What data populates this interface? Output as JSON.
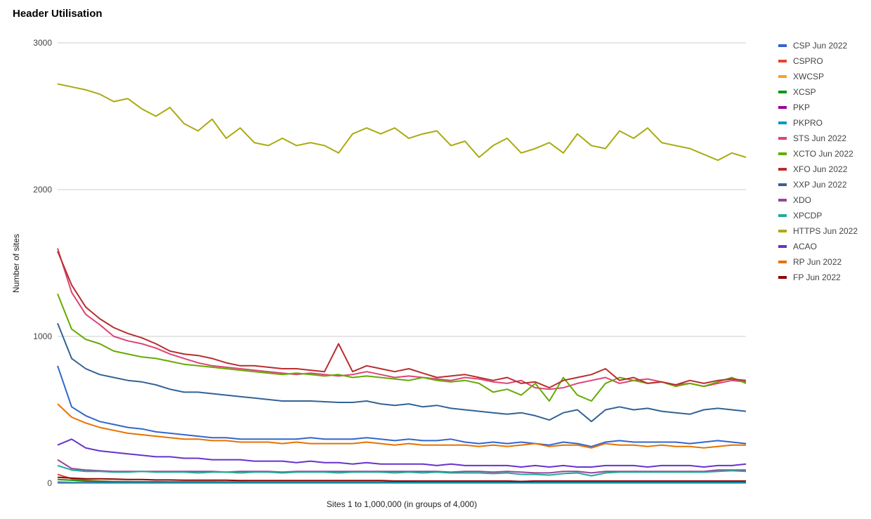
{
  "chart_data": {
    "type": "line",
    "title": "Header Utilisation",
    "xlabel": "Sites 1 to 1,000,000 (in groups of 4,000)",
    "ylabel": "Number of sites",
    "ylim": [
      0,
      3000
    ],
    "yticks": [
      "0",
      "1000",
      "2000",
      "3000"
    ],
    "yticks_values": [
      0,
      1000,
      2000,
      3000
    ],
    "grid": true,
    "legend": "right",
    "x_start": 1,
    "x_step": 5,
    "series": [
      {
        "name": "CSP Jun 2022",
        "color": "#3366cc",
        "values": [
          800,
          520,
          460,
          420,
          400,
          380,
          370,
          350,
          340,
          330,
          320,
          310,
          310,
          300,
          300,
          300,
          300,
          300,
          310,
          300,
          300,
          300,
          310,
          300,
          290,
          300,
          290,
          290,
          300,
          280,
          270,
          280,
          270,
          280,
          270,
          260,
          280,
          270,
          250,
          280,
          290,
          280,
          280,
          280,
          280,
          270,
          280,
          290,
          280,
          270
        ]
      },
      {
        "name": "CSPRO",
        "color": "#e8462b",
        "values": [
          60,
          30,
          20,
          15,
          12,
          10,
          10,
          10,
          8,
          8,
          8,
          8,
          7,
          7,
          7,
          7,
          7,
          7,
          6,
          6,
          6,
          6,
          6,
          6,
          6,
          6,
          5,
          5,
          5,
          5,
          5,
          5,
          5,
          5,
          5,
          5,
          5,
          5,
          5,
          5,
          5,
          5,
          5,
          5,
          5,
          5,
          5,
          5,
          5,
          5
        ]
      },
      {
        "name": "XWCSP",
        "color": "#ff9c2a",
        "values": [
          10,
          6,
          5,
          5,
          5,
          4,
          4,
          4,
          4,
          4,
          4,
          4,
          4,
          4,
          4,
          4,
          4,
          4,
          4,
          4,
          4,
          4,
          4,
          4,
          4,
          4,
          4,
          4,
          4,
          4,
          4,
          4,
          4,
          4,
          4,
          4,
          4,
          4,
          4,
          4,
          4,
          4,
          4,
          4,
          4,
          4,
          4,
          4,
          4,
          4
        ]
      },
      {
        "name": "XCSP",
        "color": "#109618",
        "values": [
          25,
          20,
          14,
          12,
          10,
          10,
          9,
          9,
          8,
          8,
          8,
          8,
          8,
          8,
          7,
          7,
          7,
          7,
          7,
          7,
          7,
          7,
          7,
          7,
          7,
          7,
          6,
          6,
          6,
          6,
          6,
          6,
          6,
          6,
          6,
          6,
          6,
          6,
          6,
          6,
          6,
          6,
          6,
          6,
          6,
          6,
          6,
          6,
          6,
          6
        ]
      },
      {
        "name": "PKP",
        "color": "#990099",
        "values": [
          4,
          3,
          3,
          3,
          3,
          3,
          3,
          3,
          3,
          3,
          3,
          3,
          3,
          3,
          3,
          3,
          3,
          3,
          3,
          3,
          3,
          3,
          3,
          3,
          3,
          3,
          3,
          3,
          3,
          3,
          3,
          3,
          3,
          3,
          3,
          3,
          3,
          3,
          3,
          3,
          3,
          3,
          3,
          3,
          3,
          3,
          3,
          3,
          3,
          3
        ]
      },
      {
        "name": "PKPRO",
        "color": "#0099c6",
        "values": [
          2,
          2,
          2,
          2,
          2,
          2,
          2,
          2,
          2,
          2,
          2,
          2,
          2,
          2,
          2,
          2,
          2,
          2,
          2,
          2,
          2,
          2,
          2,
          2,
          2,
          2,
          2,
          2,
          2,
          2,
          2,
          2,
          2,
          2,
          2,
          2,
          2,
          2,
          2,
          2,
          2,
          2,
          2,
          2,
          2,
          2,
          2,
          2,
          2,
          2
        ]
      },
      {
        "name": "STS Jun 2022",
        "color": "#dd4477",
        "values": [
          1600,
          1300,
          1150,
          1080,
          1000,
          970,
          950,
          920,
          880,
          850,
          820,
          800,
          790,
          780,
          770,
          760,
          750,
          740,
          750,
          740,
          730,
          740,
          760,
          740,
          720,
          730,
          720,
          710,
          700,
          720,
          710,
          690,
          680,
          700,
          650,
          640,
          650,
          680,
          700,
          720,
          680,
          700,
          710,
          690,
          670,
          680,
          660,
          680,
          700,
          690
        ]
      },
      {
        "name": "XCTO Jun 2022",
        "color": "#66aa00",
        "values": [
          1290,
          1050,
          980,
          950,
          900,
          880,
          860,
          850,
          830,
          810,
          800,
          790,
          780,
          770,
          760,
          750,
          740,
          750,
          740,
          730,
          740,
          720,
          730,
          720,
          710,
          700,
          720,
          700,
          690,
          700,
          680,
          620,
          640,
          600,
          680,
          560,
          720,
          600,
          560,
          680,
          720,
          700,
          680,
          690,
          660,
          680,
          660,
          690,
          720,
          680
        ]
      },
      {
        "name": "XFO Jun 2022",
        "color": "#b82e2e",
        "values": [
          1580,
          1350,
          1200,
          1120,
          1060,
          1020,
          990,
          950,
          900,
          880,
          870,
          850,
          820,
          800,
          800,
          790,
          780,
          780,
          770,
          760,
          950,
          760,
          800,
          780,
          760,
          780,
          750,
          720,
          730,
          740,
          720,
          700,
          720,
          680,
          690,
          650,
          700,
          720,
          740,
          780,
          700,
          720,
          680,
          690,
          670,
          700,
          680,
          700,
          710,
          700
        ]
      },
      {
        "name": "XXP Jun 2022",
        "color": "#316395",
        "values": [
          1090,
          850,
          780,
          740,
          720,
          700,
          690,
          670,
          640,
          620,
          620,
          610,
          600,
          590,
          580,
          570,
          560,
          560,
          560,
          555,
          550,
          550,
          560,
          540,
          530,
          540,
          520,
          530,
          510,
          500,
          490,
          480,
          470,
          480,
          460,
          430,
          480,
          500,
          420,
          500,
          520,
          500,
          510,
          490,
          480,
          470,
          500,
          510,
          500,
          490
        ]
      },
      {
        "name": "XDO",
        "color": "#994499",
        "values": [
          160,
          100,
          90,
          85,
          80,
          80,
          80,
          80,
          80,
          80,
          80,
          80,
          75,
          80,
          80,
          80,
          75,
          80,
          80,
          80,
          80,
          80,
          80,
          80,
          80,
          80,
          80,
          80,
          75,
          80,
          80,
          75,
          80,
          75,
          70,
          70,
          80,
          80,
          70,
          80,
          80,
          80,
          80,
          80,
          80,
          80,
          80,
          90,
          90,
          90
        ]
      },
      {
        "name": "XPCDP",
        "color": "#22aa99",
        "values": [
          120,
          90,
          80,
          80,
          75,
          75,
          80,
          75,
          75,
          75,
          70,
          75,
          75,
          70,
          75,
          75,
          70,
          75,
          75,
          75,
          70,
          75,
          75,
          75,
          70,
          75,
          70,
          75,
          70,
          70,
          70,
          65,
          70,
          60,
          60,
          55,
          65,
          70,
          50,
          70,
          75,
          75,
          75,
          75,
          75,
          75,
          75,
          80,
          85,
          80
        ]
      },
      {
        "name": "HTTPS Jun 2022",
        "color": "#aaaa11",
        "values": [
          2720,
          2700,
          2680,
          2650,
          2600,
          2620,
          2550,
          2500,
          2560,
          2450,
          2400,
          2480,
          2350,
          2420,
          2320,
          2300,
          2350,
          2300,
          2320,
          2300,
          2250,
          2380,
          2420,
          2380,
          2420,
          2350,
          2380,
          2400,
          2300,
          2330,
          2220,
          2300,
          2350,
          2250,
          2280,
          2320,
          2250,
          2380,
          2300,
          2280,
          2400,
          2350,
          2420,
          2320,
          2300,
          2280,
          2240,
          2200,
          2250,
          2220
        ]
      },
      {
        "name": "ACAO",
        "color": "#6633cc",
        "values": [
          260,
          300,
          240,
          220,
          210,
          200,
          190,
          180,
          180,
          170,
          170,
          160,
          160,
          160,
          150,
          150,
          150,
          140,
          150,
          140,
          140,
          130,
          140,
          130,
          130,
          130,
          130,
          120,
          130,
          120,
          120,
          120,
          120,
          110,
          120,
          110,
          120,
          110,
          110,
          120,
          120,
          120,
          110,
          120,
          120,
          120,
          110,
          120,
          120,
          130
        ]
      },
      {
        "name": "RP Jun 2022",
        "color": "#e67300",
        "values": [
          540,
          450,
          410,
          380,
          360,
          340,
          330,
          320,
          310,
          300,
          300,
          290,
          290,
          280,
          280,
          280,
          270,
          280,
          270,
          270,
          270,
          270,
          280,
          270,
          260,
          270,
          260,
          260,
          260,
          260,
          250,
          260,
          250,
          260,
          270,
          250,
          260,
          260,
          240,
          270,
          260,
          260,
          250,
          260,
          250,
          250,
          240,
          250,
          260,
          260
        ]
      },
      {
        "name": "FP Jun 2022",
        "color": "#8b0707",
        "values": [
          40,
          35,
          30,
          30,
          28,
          25,
          25,
          22,
          22,
          20,
          20,
          20,
          20,
          18,
          18,
          18,
          18,
          18,
          18,
          18,
          18,
          18,
          18,
          18,
          15,
          15,
          15,
          15,
          15,
          15,
          15,
          15,
          15,
          12,
          15,
          15,
          15,
          15,
          15,
          15,
          15,
          15,
          15,
          15,
          15,
          15,
          15,
          15,
          15,
          15
        ]
      }
    ]
  }
}
